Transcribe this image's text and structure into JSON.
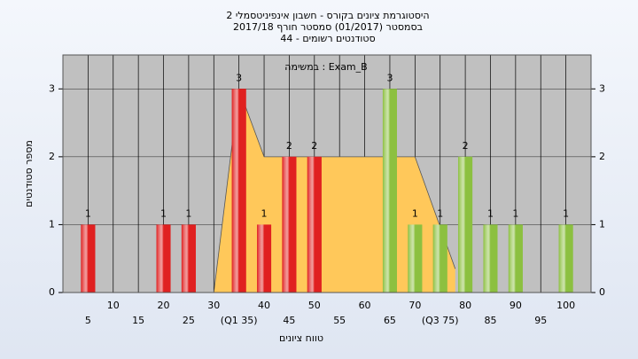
{
  "chart_data": {
    "type": "bar",
    "title": "היסטוגרמת ציונים בקורס - חשבון אינפיניטסמלי 2",
    "subtitle": "בסמסטר  (01/2017)  סמסטר חורף 2017/18",
    "subtitle2": "סטודנטים רשומים - 44",
    "annotation": "במשימה : Exam_B",
    "x_label": "טווח ציונים",
    "y_label": "מספר סטודנטים",
    "xlim": [
      0,
      105
    ],
    "ylim": [
      0,
      3.5
    ],
    "xticks": [
      5,
      10,
      15,
      20,
      25,
      30,
      {
        "value": 35,
        "label": "(Q1 35)"
      },
      40,
      45,
      50,
      55,
      60,
      65,
      70,
      {
        "value": 75,
        "label": "(Q3 75)"
      },
      80,
      85,
      90,
      95,
      100
    ],
    "yticks": [
      0,
      1,
      2,
      3
    ],
    "grid": true,
    "quartile_area": {
      "x": [
        30,
        35,
        40,
        70,
        78
      ],
      "values": [
        0,
        3,
        2,
        2,
        0.35
      ],
      "color": "#ffc85a"
    },
    "series": [
      {
        "color": "#e02020",
        "x": [
          5,
          20,
          25,
          35,
          40,
          45,
          50
        ],
        "values": [
          1,
          1,
          1,
          3,
          1,
          2,
          2
        ]
      },
      {
        "color": "#8cc040",
        "x": [
          65,
          70,
          75,
          80,
          85,
          90,
          100
        ],
        "values": [
          3,
          1,
          1,
          2,
          1,
          1,
          1
        ]
      }
    ]
  }
}
